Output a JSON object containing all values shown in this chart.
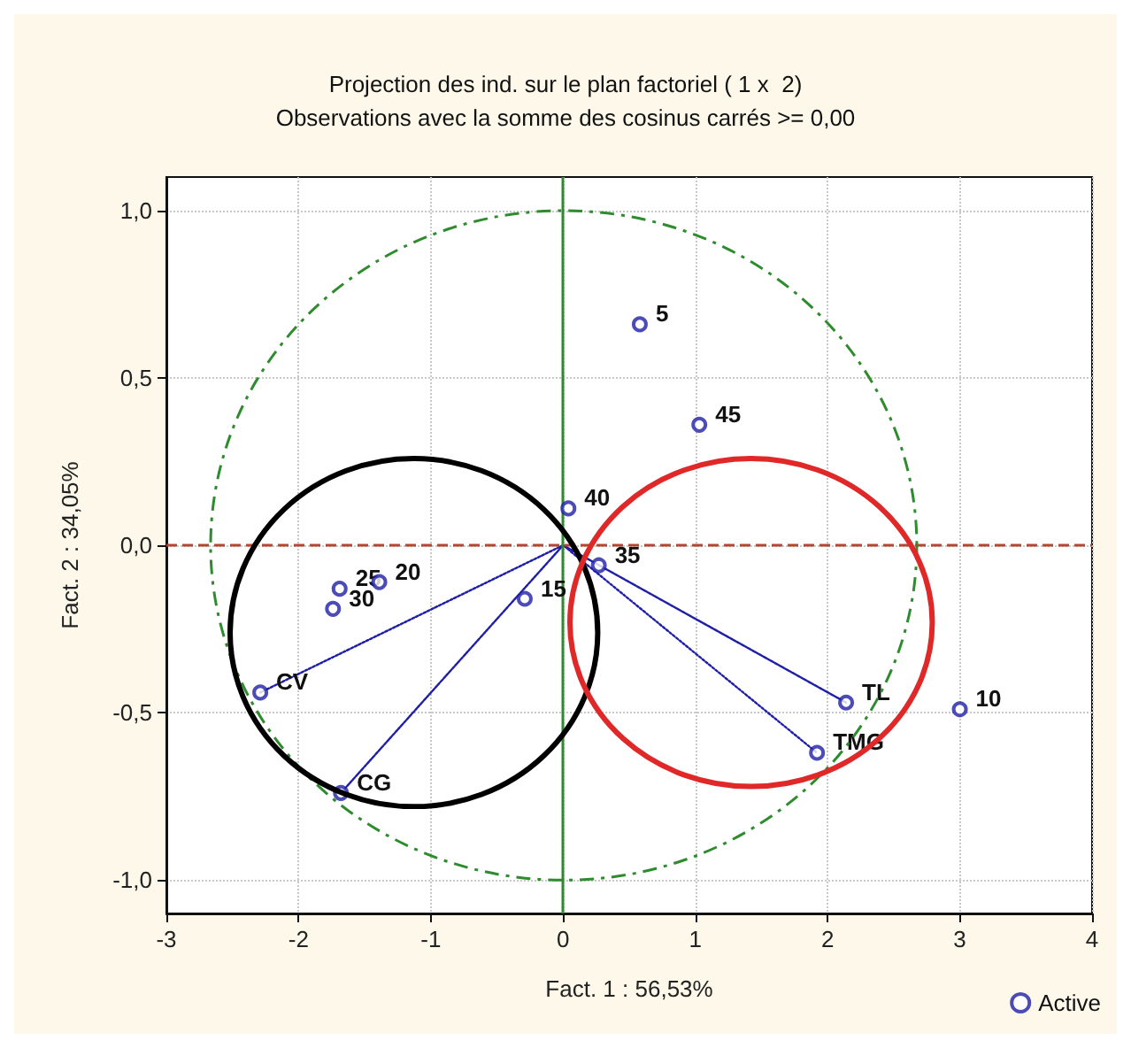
{
  "chart_data": {
    "type": "scatter",
    "title": "Projection des ind. sur le plan factoriel ( 1 x  2)",
    "subtitle": "Observations avec la somme des cosinus carrés >= 0,00",
    "xlabel": "Fact. 1 : 56,53%",
    "ylabel": "Fact. 2 : 34,05%",
    "xlim": [
      -3,
      4
    ],
    "xticks": [
      -3,
      -2,
      -1,
      0,
      1,
      2,
      3,
      4
    ],
    "ylim": [
      -1.1,
      1.1
    ],
    "yticks": [
      {
        "value": -1,
        "label": "-1,0"
      },
      {
        "value": -0.5,
        "label": "-0,5"
      },
      {
        "value": 0,
        "label": "0,0"
      },
      {
        "value": 0.5,
        "label": "0,5"
      },
      {
        "value": 1,
        "label": "1,0"
      }
    ],
    "grid": true,
    "legend": "bottom right",
    "ref_lines": [
      {
        "axis": "y",
        "value": 0,
        "color": "#b5452f",
        "line_style": "dashed"
      },
      {
        "axis": "x",
        "value": 0,
        "color": "#2e8b2e",
        "line_style": "solid"
      }
    ],
    "annotations": [
      {
        "text": "5",
        "x": 0.58,
        "y": 0.66
      },
      {
        "text": "45",
        "x": 1.03,
        "y": 0.36
      },
      {
        "text": "40",
        "x": 0.04,
        "y": 0.11
      },
      {
        "text": "35",
        "x": 0.27,
        "y": -0.06
      },
      {
        "text": "15",
        "x": -0.29,
        "y": -0.16
      },
      {
        "text": "20",
        "x": -1.39,
        "y": -0.11
      },
      {
        "text": "25",
        "x": -1.69,
        "y": -0.13
      },
      {
        "text": "30",
        "x": -1.74,
        "y": -0.19
      },
      {
        "text": "CV",
        "x": -2.29,
        "y": -0.44
      },
      {
        "text": "CG",
        "x": -1.68,
        "y": -0.74
      },
      {
        "text": "TL",
        "x": 2.14,
        "y": -0.47
      },
      {
        "text": "TMG",
        "x": 1.92,
        "y": -0.62
      },
      {
        "text": "10",
        "x": 3.0,
        "y": -0.49
      }
    ],
    "series": [
      {
        "name": "Active",
        "color": "#1f1fa8",
        "marker": "circle",
        "x": [
          0.58,
          1.03,
          0.04,
          0.27,
          -0.29,
          -1.39,
          -1.69,
          -1.74,
          -2.29,
          -1.68,
          2.14,
          1.92,
          3.0
        ],
        "values": [
          0.66,
          0.36,
          0.11,
          -0.06,
          -0.16,
          -0.11,
          -0.13,
          -0.19,
          -0.44,
          -0.74,
          -0.47,
          -0.62,
          -0.49
        ]
      },
      {
        "type": "line",
        "color": "#1f1fa8",
        "line_style": "dotted",
        "marker": "none",
        "x": [
          0,
          -2.29,
          0,
          -1.68,
          0,
          2.14,
          0,
          1.92
        ],
        "values": [
          0,
          -0.44,
          0,
          -0.74,
          0,
          -0.47,
          0,
          -0.62
        ]
      }
    ]
  }
}
